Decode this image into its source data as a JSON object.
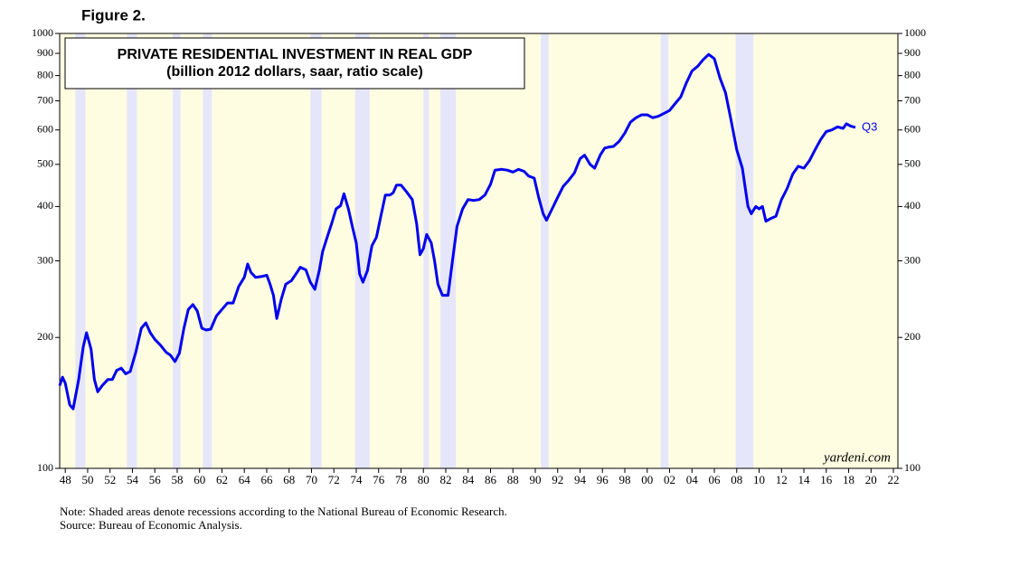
{
  "chart_data": {
    "type": "line",
    "figure_label": "Figure 2.",
    "title": "PRIVATE RESIDENTIAL INVESTMENT IN REAL GDP",
    "subtitle": "(billion 2012 dollars, saar, ratio scale)",
    "annotation": "Q3",
    "source_mark": "yardeni.com",
    "notes": [
      "Note: Shaded areas denote recessions according to the National Bureau of Economic Research.",
      "Source: Bureau of Economic Analysis."
    ],
    "log_y": true,
    "color": "#0000ee",
    "shade_color": "#e6e6fa",
    "background_color": "#fffde1",
    "xlim": [
      1947.5,
      2022.4
    ],
    "ylim": [
      100,
      1000
    ],
    "yticks": [
      100,
      200,
      300,
      400,
      500,
      600,
      700,
      800,
      900,
      1000
    ],
    "xticks": [
      {
        "value": 1948,
        "label": "48"
      },
      {
        "value": 1950,
        "label": "50"
      },
      {
        "value": 1952,
        "label": "52"
      },
      {
        "value": 1954,
        "label": "54"
      },
      {
        "value": 1956,
        "label": "56"
      },
      {
        "value": 1958,
        "label": "58"
      },
      {
        "value": 1960,
        "label": "60"
      },
      {
        "value": 1962,
        "label": "62"
      },
      {
        "value": 1964,
        "label": "64"
      },
      {
        "value": 1966,
        "label": "66"
      },
      {
        "value": 1968,
        "label": "68"
      },
      {
        "value": 1970,
        "label": "70"
      },
      {
        "value": 1972,
        "label": "72"
      },
      {
        "value": 1974,
        "label": "74"
      },
      {
        "value": 1976,
        "label": "76"
      },
      {
        "value": 1978,
        "label": "78"
      },
      {
        "value": 1980,
        "label": "80"
      },
      {
        "value": 1982,
        "label": "82"
      },
      {
        "value": 1984,
        "label": "84"
      },
      {
        "value": 1986,
        "label": "86"
      },
      {
        "value": 1988,
        "label": "88"
      },
      {
        "value": 1990,
        "label": "90"
      },
      {
        "value": 1992,
        "label": "92"
      },
      {
        "value": 1994,
        "label": "94"
      },
      {
        "value": 1996,
        "label": "96"
      },
      {
        "value": 1998,
        "label": "98"
      },
      {
        "value": 2000,
        "label": "00"
      },
      {
        "value": 2002,
        "label": "02"
      },
      {
        "value": 2004,
        "label": "04"
      },
      {
        "value": 2006,
        "label": "06"
      },
      {
        "value": 2008,
        "label": "08"
      },
      {
        "value": 2010,
        "label": "10"
      },
      {
        "value": 2012,
        "label": "12"
      },
      {
        "value": 2014,
        "label": "14"
      },
      {
        "value": 2016,
        "label": "16"
      },
      {
        "value": 2018,
        "label": "18"
      },
      {
        "value": 2020,
        "label": "20"
      },
      {
        "value": 2022,
        "label": "22"
      }
    ],
    "recessions": [
      [
        1948.9,
        1949.8
      ],
      [
        1953.5,
        1954.4
      ],
      [
        1957.6,
        1958.3
      ],
      [
        1960.3,
        1961.1
      ],
      [
        1969.9,
        1970.9
      ],
      [
        1973.9,
        1975.2
      ],
      [
        1980.0,
        1980.5
      ],
      [
        1981.5,
        1982.9
      ],
      [
        1990.5,
        1991.2
      ],
      [
        2001.2,
        2001.9
      ],
      [
        2007.9,
        2009.5
      ]
    ],
    "x": [
      1947.5,
      1947.75,
      1948.0,
      1948.4,
      1948.7,
      1949.2,
      1949.6,
      1949.9,
      1950.3,
      1950.6,
      1950.9,
      1951.3,
      1951.8,
      1952.2,
      1952.6,
      1953.0,
      1953.4,
      1953.8,
      1954.3,
      1954.8,
      1955.2,
      1955.6,
      1956.0,
      1956.5,
      1957.0,
      1957.4,
      1957.8,
      1958.2,
      1958.6,
      1959.0,
      1959.4,
      1959.8,
      1960.2,
      1960.6,
      1961.0,
      1961.5,
      1962.0,
      1962.5,
      1963.0,
      1963.5,
      1964.0,
      1964.3,
      1964.6,
      1965.0,
      1965.5,
      1966.0,
      1966.3,
      1966.6,
      1966.9,
      1967.3,
      1967.7,
      1968.2,
      1968.7,
      1969.0,
      1969.5,
      1969.9,
      1970.3,
      1970.7,
      1971.0,
      1971.4,
      1971.8,
      1972.2,
      1972.6,
      1972.9,
      1973.3,
      1973.7,
      1974.0,
      1974.3,
      1974.6,
      1975.0,
      1975.4,
      1975.8,
      1976.2,
      1976.6,
      1977.0,
      1977.3,
      1977.6,
      1978.0,
      1978.5,
      1979.0,
      1979.4,
      1979.7,
      1980.0,
      1980.3,
      1980.7,
      1981.0,
      1981.3,
      1981.7,
      1982.2,
      1982.6,
      1983.0,
      1983.5,
      1984.0,
      1984.5,
      1985.0,
      1985.5,
      1986.0,
      1986.4,
      1987.0,
      1987.5,
      1988.0,
      1988.5,
      1989.0,
      1989.4,
      1989.9,
      1990.3,
      1990.7,
      1991.0,
      1991.5,
      1992.0,
      1992.5,
      1993.0,
      1993.5,
      1994.0,
      1994.4,
      1994.9,
      1995.3,
      1995.8,
      1996.2,
      1996.6,
      1997.0,
      1997.5,
      1998.0,
      1998.5,
      1999.0,
      1999.5,
      2000.0,
      2000.5,
      2001.0,
      2001.5,
      2002.0,
      2002.5,
      2003.0,
      2003.5,
      2004.0,
      2004.5,
      2005.0,
      2005.5,
      2006.0,
      2006.5,
      2007.0,
      2007.5,
      2008.0,
      2008.5,
      2009.0,
      2009.3,
      2009.7,
      2010.0,
      2010.3,
      2010.6,
      2011.0,
      2011.5,
      2012.0,
      2012.5,
      2013.0,
      2013.5,
      2014.0,
      2014.5,
      2015.0,
      2015.5,
      2016.0,
      2016.5,
      2017.0,
      2017.5,
      2017.8,
      2018.2,
      2018.6
    ],
    "values": [
      155,
      162,
      157,
      140,
      137,
      160,
      190,
      205,
      188,
      160,
      150,
      155,
      160,
      160,
      168,
      170,
      165,
      167,
      185,
      210,
      216,
      205,
      198,
      192,
      185,
      182,
      176,
      184,
      210,
      232,
      238,
      230,
      210,
      208,
      209,
      224,
      232,
      240,
      240,
      262,
      275,
      295,
      282,
      275,
      276,
      278,
      265,
      250,
      221,
      245,
      265,
      270,
      282,
      290,
      286,
      268,
      258,
      285,
      315,
      340,
      365,
      395,
      402,
      428,
      395,
      355,
      330,
      280,
      268,
      285,
      325,
      340,
      380,
      425,
      425,
      430,
      448,
      448,
      432,
      415,
      365,
      310,
      320,
      345,
      330,
      300,
      265,
      250,
      250,
      300,
      360,
      395,
      415,
      413,
      415,
      425,
      450,
      485,
      487,
      485,
      480,
      487,
      482,
      470,
      465,
      420,
      385,
      372,
      395,
      420,
      445,
      460,
      478,
      515,
      525,
      500,
      490,
      525,
      545,
      548,
      550,
      565,
      590,
      625,
      640,
      650,
      650,
      640,
      645,
      655,
      665,
      690,
      715,
      770,
      820,
      840,
      870,
      895,
      875,
      790,
      730,
      630,
      540,
      490,
      400,
      385,
      400,
      395,
      400,
      370,
      375,
      380,
      415,
      440,
      475,
      495,
      490,
      510,
      540,
      570,
      595,
      600,
      610,
      605,
      620,
      612,
      608
    ]
  }
}
